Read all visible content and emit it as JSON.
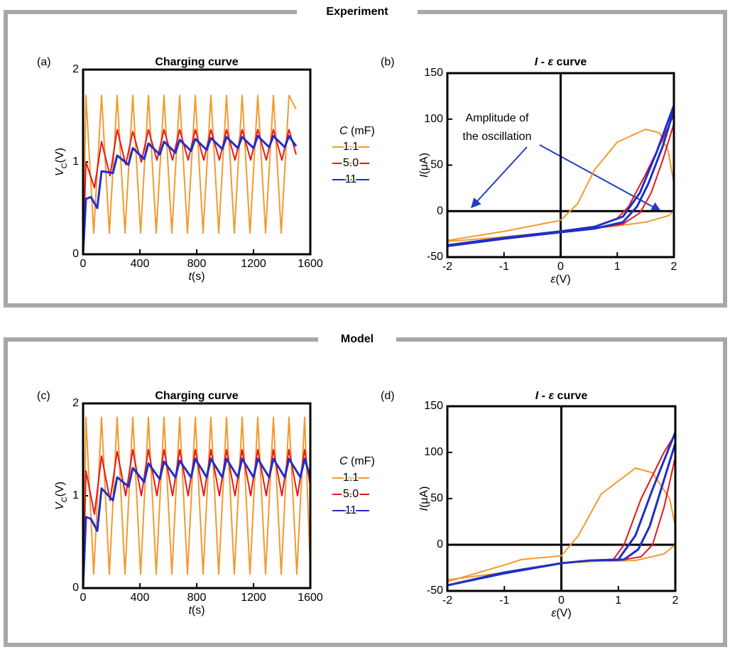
{
  "sections": [
    {
      "title": "Experiment"
    },
    {
      "title": "Model"
    }
  ],
  "chart_data": [
    {
      "type": "line",
      "panel": "(a)",
      "title": [
        {
          "text": "Charging curve"
        }
      ],
      "xlabel": [
        {
          "text": "t",
          "italic": true
        },
        {
          "text": "(s)"
        }
      ],
      "ylabel": [
        {
          "text": "V",
          "italic": true
        },
        {
          "text": "C",
          "sub": true
        },
        {
          "text": "(V)"
        }
      ],
      "xlim": [
        0,
        1600
      ],
      "xticks": [
        0,
        400,
        800,
        1200,
        1600
      ],
      "ylim": [
        0,
        2
      ],
      "yticks": [
        0,
        1,
        2
      ],
      "legend_title": [
        {
          "text": "C",
          "italic": true
        },
        {
          "text": " (mF)"
        }
      ],
      "series": [
        {
          "name": "1.1",
          "color": "#f39a2e",
          "x": [
            0,
            20,
            75,
            130,
            185,
            240,
            295,
            350,
            405,
            460,
            515,
            570,
            625,
            680,
            735,
            790,
            845,
            900,
            955,
            1010,
            1065,
            1120,
            1175,
            1230,
            1285,
            1340,
            1395,
            1450,
            1500
          ],
          "values": [
            0,
            1.72,
            0.23,
            1.72,
            0.23,
            1.72,
            0.23,
            1.72,
            0.23,
            1.72,
            0.23,
            1.72,
            0.23,
            1.72,
            0.23,
            1.72,
            0.23,
            1.72,
            0.23,
            1.72,
            0.23,
            1.72,
            0.23,
            1.72,
            0.23,
            1.72,
            0.23,
            1.72,
            1.57
          ]
        },
        {
          "name": "5.0",
          "color": "#e8171b",
          "x": [
            0,
            20,
            80,
            130,
            190,
            240,
            300,
            350,
            410,
            460,
            520,
            570,
            630,
            680,
            740,
            790,
            850,
            900,
            960,
            1010,
            1070,
            1120,
            1180,
            1230,
            1290,
            1340,
            1400,
            1450,
            1500
          ],
          "values": [
            0,
            1.0,
            0.72,
            1.22,
            0.85,
            1.35,
            0.97,
            1.33,
            1.0,
            1.35,
            1.02,
            1.35,
            1.02,
            1.35,
            1.02,
            1.35,
            1.02,
            1.35,
            1.02,
            1.35,
            1.02,
            1.35,
            1.02,
            1.35,
            1.02,
            1.35,
            1.02,
            1.35,
            1.08
          ]
        },
        {
          "name": "11",
          "color": "#1f2fc7",
          "x": [
            0,
            20,
            55,
            100,
            130,
            210,
            240,
            320,
            350,
            430,
            460,
            540,
            570,
            650,
            680,
            760,
            790,
            870,
            900,
            980,
            1010,
            1090,
            1120,
            1200,
            1230,
            1310,
            1340,
            1420,
            1450,
            1500
          ],
          "values": [
            0,
            0.6,
            0.62,
            0.5,
            0.9,
            0.88,
            1.07,
            0.97,
            1.15,
            1.03,
            1.2,
            1.08,
            1.22,
            1.1,
            1.24,
            1.12,
            1.25,
            1.13,
            1.26,
            1.14,
            1.27,
            1.15,
            1.27,
            1.15,
            1.28,
            1.16,
            1.28,
            1.16,
            1.28,
            1.17
          ]
        }
      ]
    },
    {
      "type": "line",
      "panel": "(b)",
      "title": [
        {
          "text": "I",
          "italic": true
        },
        {
          "text": " - "
        },
        {
          "text": "ε",
          "italic": true
        },
        {
          "text": " curve"
        }
      ],
      "xlabel": [
        {
          "text": "ε",
          "italic": true
        },
        {
          "text": "(V)"
        }
      ],
      "ylabel": [
        {
          "text": "I",
          "italic": true
        },
        {
          "text": "(μA)"
        }
      ],
      "xlim": [
        -2,
        2
      ],
      "xticks": [
        -2,
        -1,
        0,
        1,
        2
      ],
      "ylim": [
        -50,
        150
      ],
      "yticks": [
        -50,
        0,
        50,
        100,
        150
      ],
      "zero_lines": true,
      "annotation": [
        "Amplitude of",
        "the oscillation"
      ],
      "series": [
        {
          "color": "#f39a2e",
          "x": [
            -2,
            -1,
            0,
            0.3,
            0.6,
            1,
            1.5,
            1.75,
            1.9,
            2,
            2,
            1.9,
            1.5,
            1,
            0,
            -1,
            -2
          ],
          "values": [
            -32,
            -22,
            -10,
            8,
            45,
            75,
            89,
            85,
            65,
            30,
            0,
            -5,
            -12,
            -16,
            -22,
            -28,
            -33
          ]
        },
        {
          "color": "#e8171b",
          "x": [
            -2,
            -1,
            0,
            0.6,
            1,
            1.2,
            1.5,
            1.8,
            2,
            2,
            1.8,
            1.6,
            1.4,
            1.1,
            0.6,
            0,
            -1,
            -2
          ],
          "values": [
            -37,
            -29,
            -22,
            -17,
            -8,
            5,
            40,
            78,
            105,
            95,
            55,
            20,
            -2,
            -14,
            -19,
            -23,
            -30,
            -38
          ]
        },
        {
          "color": "#1f2fc7",
          "x": [
            -2,
            -1,
            0,
            0.6,
            1.1,
            1.4,
            1.7,
            2,
            2,
            1.8,
            1.55,
            1.35,
            1.1,
            0.6,
            0,
            -1,
            -2
          ],
          "values": [
            -37,
            -29,
            -22,
            -17,
            -6,
            20,
            65,
            115,
            110,
            70,
            30,
            5,
            -12,
            -19,
            -23,
            -30,
            -38
          ]
        }
      ]
    },
    {
      "type": "line",
      "panel": "(c)",
      "title": [
        {
          "text": "Charging curve"
        }
      ],
      "xlabel": [
        {
          "text": "t",
          "italic": true
        },
        {
          "text": "(s)"
        }
      ],
      "ylabel": [
        {
          "text": "V",
          "italic": true
        },
        {
          "text": "C",
          "sub": true
        },
        {
          "text": "(V)"
        }
      ],
      "xlim": [
        0,
        1600
      ],
      "xticks": [
        0,
        400,
        800,
        1200,
        1600
      ],
      "ylim": [
        0,
        2
      ],
      "yticks": [
        0,
        1,
        2
      ],
      "legend_title": [
        {
          "text": "C",
          "italic": true
        },
        {
          "text": " (mF)"
        }
      ],
      "series": [
        {
          "name": "1.1",
          "color": "#f39a2e",
          "x": [
            0,
            20,
            75,
            130,
            185,
            240,
            295,
            350,
            405,
            460,
            515,
            570,
            625,
            680,
            735,
            790,
            845,
            900,
            955,
            1010,
            1065,
            1120,
            1175,
            1230,
            1285,
            1340,
            1395,
            1450,
            1505,
            1560,
            1600
          ],
          "values": [
            0,
            1.85,
            0.15,
            1.85,
            0.15,
            1.85,
            0.15,
            1.85,
            0.15,
            1.85,
            0.15,
            1.85,
            0.15,
            1.85,
            0.15,
            1.85,
            0.15,
            1.85,
            0.15,
            1.85,
            0.15,
            1.85,
            0.15,
            1.85,
            0.15,
            1.85,
            0.15,
            1.85,
            0.15,
            1.85,
            0.2
          ]
        },
        {
          "name": "5.0",
          "color": "#e8171b",
          "x": [
            0,
            20,
            80,
            130,
            190,
            240,
            300,
            350,
            410,
            460,
            520,
            570,
            630,
            680,
            740,
            790,
            850,
            900,
            960,
            1010,
            1070,
            1120,
            1180,
            1230,
            1290,
            1340,
            1400,
            1450,
            1510,
            1560,
            1600
          ],
          "values": [
            0,
            1.27,
            0.8,
            1.43,
            0.95,
            1.48,
            1.0,
            1.5,
            1.0,
            1.5,
            1.0,
            1.5,
            1.0,
            1.5,
            1.0,
            1.5,
            1.0,
            1.5,
            1.0,
            1.5,
            1.0,
            1.5,
            1.0,
            1.5,
            1.0,
            1.5,
            1.0,
            1.5,
            1.0,
            1.5,
            1.1
          ]
        },
        {
          "name": "11",
          "color": "#1f2fc7",
          "x": [
            0,
            20,
            55,
            100,
            130,
            210,
            240,
            320,
            350,
            430,
            460,
            540,
            570,
            650,
            680,
            760,
            790,
            870,
            900,
            980,
            1010,
            1090,
            1120,
            1200,
            1230,
            1310,
            1340,
            1420,
            1450,
            1530,
            1560,
            1600
          ],
          "values": [
            0,
            0.77,
            0.75,
            0.62,
            1.08,
            0.95,
            1.2,
            1.1,
            1.3,
            1.15,
            1.35,
            1.18,
            1.37,
            1.2,
            1.38,
            1.2,
            1.4,
            1.2,
            1.4,
            1.2,
            1.4,
            1.2,
            1.4,
            1.2,
            1.4,
            1.2,
            1.4,
            1.2,
            1.4,
            1.2,
            1.4,
            1.2
          ]
        }
      ]
    },
    {
      "type": "line",
      "panel": "(d)",
      "title": [
        {
          "text": "I",
          "italic": true
        },
        {
          "text": " - "
        },
        {
          "text": "ε",
          "italic": true
        },
        {
          "text": " curve"
        }
      ],
      "xlabel": [
        {
          "text": "ε",
          "italic": true
        },
        {
          "text": "(V)"
        }
      ],
      "ylabel": [
        {
          "text": "I",
          "italic": true
        },
        {
          "text": "(μA)"
        }
      ],
      "xlim": [
        -2,
        2
      ],
      "xticks": [
        -2,
        -1,
        0,
        1,
        2
      ],
      "ylim": [
        -50,
        150
      ],
      "yticks": [
        -50,
        0,
        50,
        100,
        150
      ],
      "zero_lines": true,
      "series": [
        {
          "color": "#f39a2e",
          "x": [
            -2,
            -1,
            -0.7,
            0,
            0.3,
            0.7,
            1.3,
            1.6,
            1.9,
            2,
            2,
            1.8,
            1.3,
            0.6,
            0,
            -1,
            -2
          ],
          "values": [
            -40,
            -22,
            -16,
            -12,
            10,
            55,
            83,
            78,
            50,
            20,
            0,
            -10,
            -17,
            -18,
            -20,
            -30,
            -38
          ]
        },
        {
          "color": "#e8171b",
          "x": [
            -2,
            -1,
            0,
            0.5,
            0.9,
            1.1,
            1.4,
            1.8,
            2,
            2,
            1.8,
            1.6,
            1.4,
            1,
            0.5,
            0,
            -1,
            -2
          ],
          "values": [
            -44,
            -30,
            -20,
            -17,
            -17,
            0,
            50,
            100,
            120,
            95,
            40,
            0,
            -13,
            -17,
            -17,
            -20,
            -31,
            -44
          ]
        },
        {
          "color": "#1f2fc7",
          "x": [
            -2,
            -1,
            0,
            0.5,
            1,
            1.3,
            1.6,
            2,
            2,
            1.8,
            1.55,
            1.35,
            1.1,
            0.5,
            0,
            -1,
            -2
          ],
          "values": [
            -44,
            -30,
            -20,
            -17,
            -16,
            10,
            60,
            122,
            110,
            70,
            20,
            -5,
            -16,
            -17,
            -20,
            -31,
            -44
          ]
        }
      ]
    }
  ]
}
